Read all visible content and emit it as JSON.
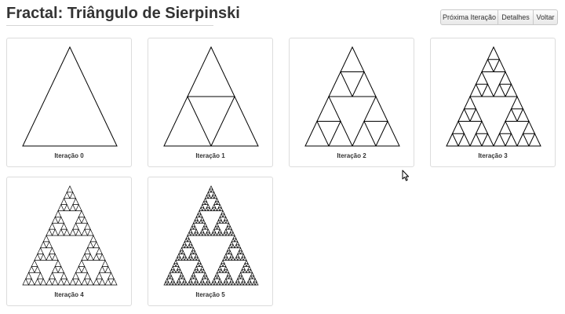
{
  "page": {
    "title": "Fractal: Triângulo de Sierpinski"
  },
  "toolbar": {
    "next_label": "Próxima Iteração",
    "details_label": "Detalhes",
    "back_label": "Voltar"
  },
  "iterations": [
    {
      "label": "Iteração 0",
      "depth": 0
    },
    {
      "label": "Iteração 1",
      "depth": 1
    },
    {
      "label": "Iteração 2",
      "depth": 2
    },
    {
      "label": "Iteração 3",
      "depth": 3
    },
    {
      "label": "Iteração 4",
      "depth": 4
    },
    {
      "label": "Iteração 5",
      "depth": 5
    }
  ],
  "colors": {
    "stroke": "#000000",
    "title": "#333333"
  }
}
